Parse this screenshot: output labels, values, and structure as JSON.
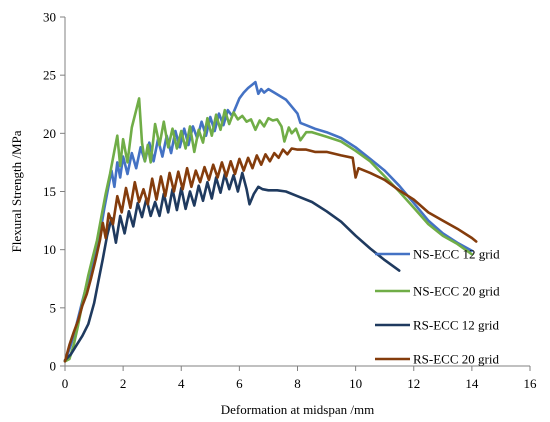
{
  "chart_data": {
    "type": "line",
    "title": "",
    "xlabel": "Deformation at midspan /mm",
    "ylabel": "Flexural Strength /MPa",
    "xlim": [
      0,
      16
    ],
    "ylim": [
      0,
      30
    ],
    "xticks": [
      0,
      2,
      4,
      6,
      8,
      10,
      12,
      14,
      16
    ],
    "yticks": [
      0,
      5,
      10,
      15,
      20,
      25,
      30
    ],
    "grid": false,
    "legend_position": "right",
    "series": [
      {
        "name": "NS-ECC 12 grid",
        "color": "#4472C4",
        "points": [
          [
            0,
            0.4
          ],
          [
            0.2,
            1.8
          ],
          [
            0.4,
            3.6
          ],
          [
            0.6,
            5.6
          ],
          [
            0.8,
            7.5
          ],
          [
            1.0,
            9.3
          ],
          [
            1.2,
            11.3
          ],
          [
            1.35,
            13.5
          ],
          [
            1.5,
            15.5
          ],
          [
            1.6,
            16.8
          ],
          [
            1.7,
            15.4
          ],
          [
            1.8,
            17.5
          ],
          [
            1.9,
            16.2
          ],
          [
            2.0,
            18.0
          ],
          [
            2.15,
            16.5
          ],
          [
            2.3,
            18.3
          ],
          [
            2.45,
            17.0
          ],
          [
            2.6,
            18.8
          ],
          [
            2.75,
            17.6
          ],
          [
            2.9,
            19.2
          ],
          [
            3.05,
            17.6
          ],
          [
            3.2,
            19.5
          ],
          [
            3.35,
            18.0
          ],
          [
            3.5,
            19.8
          ],
          [
            3.65,
            18.3
          ],
          [
            3.8,
            20.2
          ],
          [
            3.95,
            18.8
          ],
          [
            4.1,
            20.4
          ],
          [
            4.25,
            19.0
          ],
          [
            4.4,
            20.6
          ],
          [
            4.55,
            19.6
          ],
          [
            4.7,
            21.0
          ],
          [
            4.85,
            19.8
          ],
          [
            5.0,
            21.4
          ],
          [
            5.15,
            20.2
          ],
          [
            5.3,
            21.7
          ],
          [
            5.45,
            20.7
          ],
          [
            5.6,
            22.0
          ],
          [
            5.75,
            21.5
          ],
          [
            5.9,
            22.4
          ],
          [
            6.0,
            23.0
          ],
          [
            6.15,
            23.5
          ],
          [
            6.3,
            23.9
          ],
          [
            6.45,
            24.2
          ],
          [
            6.55,
            24.4
          ],
          [
            6.65,
            23.4
          ],
          [
            6.75,
            23.8
          ],
          [
            6.85,
            23.5
          ],
          [
            7.0,
            23.8
          ],
          [
            7.2,
            23.5
          ],
          [
            7.4,
            23.2
          ],
          [
            7.6,
            22.9
          ],
          [
            7.8,
            22.3
          ],
          [
            8.0,
            21.7
          ],
          [
            8.1,
            20.9
          ],
          [
            8.3,
            20.7
          ],
          [
            8.6,
            20.4
          ],
          [
            9.0,
            20.1
          ],
          [
            9.5,
            19.6
          ],
          [
            10.0,
            18.8
          ],
          [
            10.5,
            17.8
          ],
          [
            11.0,
            16.8
          ],
          [
            11.5,
            15.5
          ],
          [
            12.0,
            14.0
          ],
          [
            12.5,
            12.5
          ],
          [
            13.0,
            11.4
          ],
          [
            13.5,
            10.6
          ],
          [
            14.0,
            9.9
          ]
        ]
      },
      {
        "name": "NS-ECC 20 grid",
        "color": "#70AD47",
        "points": [
          [
            0,
            0.4
          ],
          [
            0.15,
            0.6
          ],
          [
            0.3,
            1.8
          ],
          [
            0.45,
            3.5
          ],
          [
            0.6,
            5.4
          ],
          [
            0.8,
            7.8
          ],
          [
            0.95,
            9.3
          ],
          [
            1.1,
            10.8
          ],
          [
            1.25,
            12.8
          ],
          [
            1.4,
            14.8
          ],
          [
            1.55,
            16.5
          ],
          [
            1.7,
            18.5
          ],
          [
            1.8,
            19.8
          ],
          [
            1.9,
            17.2
          ],
          [
            2.0,
            19.5
          ],
          [
            2.15,
            17.5
          ],
          [
            2.3,
            20.5
          ],
          [
            2.45,
            22.0
          ],
          [
            2.55,
            23.0
          ],
          [
            2.65,
            19.2
          ],
          [
            2.75,
            17.6
          ],
          [
            2.85,
            19.0
          ],
          [
            2.95,
            17.5
          ],
          [
            3.1,
            20.8
          ],
          [
            3.25,
            19.0
          ],
          [
            3.4,
            21.0
          ],
          [
            3.55,
            18.8
          ],
          [
            3.7,
            20.4
          ],
          [
            3.85,
            18.7
          ],
          [
            4.0,
            20.2
          ],
          [
            4.15,
            18.7
          ],
          [
            4.3,
            20.6
          ],
          [
            4.45,
            18.4
          ],
          [
            4.6,
            20.3
          ],
          [
            4.75,
            19.2
          ],
          [
            4.9,
            21.3
          ],
          [
            5.05,
            19.8
          ],
          [
            5.2,
            21.6
          ],
          [
            5.35,
            20.3
          ],
          [
            5.5,
            22.0
          ],
          [
            5.65,
            20.8
          ],
          [
            5.8,
            21.8
          ],
          [
            5.95,
            21.2
          ],
          [
            6.1,
            21.5
          ],
          [
            6.25,
            21.0
          ],
          [
            6.4,
            21.2
          ],
          [
            6.55,
            20.3
          ],
          [
            6.7,
            21.1
          ],
          [
            6.85,
            20.6
          ],
          [
            7.0,
            21.3
          ],
          [
            7.15,
            21.1
          ],
          [
            7.3,
            21.2
          ],
          [
            7.45,
            20.6
          ],
          [
            7.55,
            19.3
          ],
          [
            7.7,
            20.5
          ],
          [
            7.8,
            20.0
          ],
          [
            7.95,
            20.4
          ],
          [
            8.1,
            19.4
          ],
          [
            8.3,
            20.1
          ],
          [
            8.5,
            20.1
          ],
          [
            9.0,
            19.7
          ],
          [
            9.5,
            19.3
          ],
          [
            10.0,
            18.5
          ],
          [
            10.5,
            17.6
          ],
          [
            11.0,
            16.3
          ],
          [
            11.5,
            15.0
          ],
          [
            12.0,
            13.6
          ],
          [
            12.5,
            12.2
          ],
          [
            13.0,
            11.2
          ],
          [
            13.5,
            10.5
          ],
          [
            14.0,
            9.6
          ]
        ]
      },
      {
        "name": "RS-ECC 12 grid",
        "color": "#1F3A5F",
        "points": [
          [
            0,
            0.5
          ],
          [
            0.2,
            1.0
          ],
          [
            0.4,
            1.8
          ],
          [
            0.6,
            2.6
          ],
          [
            0.8,
            3.6
          ],
          [
            1.0,
            5.4
          ],
          [
            1.15,
            7.3
          ],
          [
            1.3,
            9.2
          ],
          [
            1.45,
            11.2
          ],
          [
            1.6,
            12.7
          ],
          [
            1.75,
            10.6
          ],
          [
            1.9,
            12.9
          ],
          [
            2.05,
            11.4
          ],
          [
            2.2,
            13.3
          ],
          [
            2.35,
            12.0
          ],
          [
            2.5,
            14.0
          ],
          [
            2.65,
            12.8
          ],
          [
            2.8,
            14.4
          ],
          [
            2.95,
            12.9
          ],
          [
            3.1,
            14.1
          ],
          [
            3.25,
            12.9
          ],
          [
            3.4,
            14.8
          ],
          [
            3.55,
            13.2
          ],
          [
            3.7,
            15.2
          ],
          [
            3.85,
            13.4
          ],
          [
            4.0,
            15.3
          ],
          [
            4.15,
            13.5
          ],
          [
            4.3,
            15.0
          ],
          [
            4.45,
            13.8
          ],
          [
            4.6,
            15.5
          ],
          [
            4.75,
            14.2
          ],
          [
            4.9,
            15.8
          ],
          [
            5.05,
            14.4
          ],
          [
            5.2,
            16.2
          ],
          [
            5.35,
            14.9
          ],
          [
            5.5,
            16.5
          ],
          [
            5.65,
            15.2
          ],
          [
            5.8,
            16.4
          ],
          [
            5.95,
            15.0
          ],
          [
            6.1,
            16.6
          ],
          [
            6.25,
            15.2
          ],
          [
            6.35,
            13.9
          ],
          [
            6.5,
            14.8
          ],
          [
            6.65,
            15.4
          ],
          [
            6.8,
            15.2
          ],
          [
            7.0,
            15.1
          ],
          [
            7.3,
            15.1
          ],
          [
            7.6,
            15.0
          ],
          [
            8.0,
            14.6
          ],
          [
            8.5,
            14.1
          ],
          [
            9.0,
            13.3
          ],
          [
            9.5,
            12.4
          ],
          [
            10.0,
            11.2
          ],
          [
            10.5,
            10.1
          ],
          [
            11.0,
            9.1
          ],
          [
            11.5,
            8.2
          ]
        ]
      },
      {
        "name": "RS-ECC 20 grid",
        "color": "#843C0C",
        "points": [
          [
            0,
            0.4
          ],
          [
            0.15,
            1.8
          ],
          [
            0.3,
            2.9
          ],
          [
            0.45,
            3.9
          ],
          [
            0.6,
            5.2
          ],
          [
            0.75,
            6.2
          ],
          [
            0.9,
            7.6
          ],
          [
            1.05,
            9.1
          ],
          [
            1.2,
            10.8
          ],
          [
            1.3,
            12.3
          ],
          [
            1.4,
            11.0
          ],
          [
            1.5,
            13.1
          ],
          [
            1.65,
            12.2
          ],
          [
            1.8,
            14.6
          ],
          [
            1.95,
            13.2
          ],
          [
            2.1,
            15.3
          ],
          [
            2.25,
            13.6
          ],
          [
            2.4,
            15.8
          ],
          [
            2.55,
            14.1
          ],
          [
            2.7,
            15.2
          ],
          [
            2.85,
            13.9
          ],
          [
            3.0,
            16.1
          ],
          [
            3.15,
            14.3
          ],
          [
            3.3,
            16.3
          ],
          [
            3.45,
            14.6
          ],
          [
            3.6,
            16.6
          ],
          [
            3.75,
            15.0
          ],
          [
            3.9,
            16.7
          ],
          [
            4.05,
            15.2
          ],
          [
            4.2,
            17.0
          ],
          [
            4.35,
            15.4
          ],
          [
            4.5,
            16.8
          ],
          [
            4.65,
            15.8
          ],
          [
            4.8,
            17.1
          ],
          [
            4.95,
            16.0
          ],
          [
            5.1,
            17.3
          ],
          [
            5.25,
            16.2
          ],
          [
            5.4,
            17.5
          ],
          [
            5.55,
            16.3
          ],
          [
            5.7,
            17.6
          ],
          [
            5.85,
            16.5
          ],
          [
            6.0,
            17.8
          ],
          [
            6.15,
            16.8
          ],
          [
            6.3,
            17.9
          ],
          [
            6.45,
            17.0
          ],
          [
            6.6,
            18.1
          ],
          [
            6.75,
            17.3
          ],
          [
            6.9,
            18.2
          ],
          [
            7.05,
            17.6
          ],
          [
            7.2,
            18.3
          ],
          [
            7.35,
            17.9
          ],
          [
            7.5,
            18.6
          ],
          [
            7.65,
            18.2
          ],
          [
            7.8,
            18.7
          ],
          [
            8.0,
            18.6
          ],
          [
            8.3,
            18.6
          ],
          [
            8.6,
            18.4
          ],
          [
            9.0,
            18.4
          ],
          [
            9.5,
            18.1
          ],
          [
            9.9,
            17.9
          ],
          [
            10.0,
            16.2
          ],
          [
            10.1,
            17.0
          ],
          [
            10.5,
            16.6
          ],
          [
            11.0,
            16.0
          ],
          [
            11.5,
            15.1
          ],
          [
            12.0,
            14.3
          ],
          [
            12.5,
            13.2
          ],
          [
            13.0,
            12.5
          ],
          [
            13.5,
            11.8
          ],
          [
            14.0,
            11.0
          ],
          [
            14.15,
            10.7
          ]
        ]
      }
    ]
  }
}
